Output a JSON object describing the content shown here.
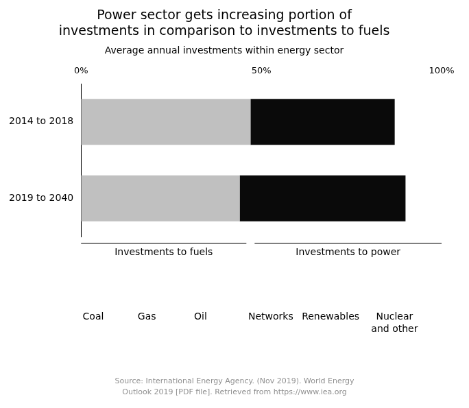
{
  "chart_data": {
    "type": "bar",
    "orientation": "horizontal",
    "stacked": true,
    "title": [
      "Power sector gets increasing portion of",
      "investments in comparison to investments to fuels"
    ],
    "subtitle": "Average annual investments within energy sector",
    "categories": [
      "2014 to 2018",
      "2019 to 2040"
    ],
    "series": [
      {
        "name": "Investments to fuels",
        "color": "#c0c0c0",
        "values": [
          47,
          44
        ]
      },
      {
        "name": "Investments to power",
        "color": "#0a0a0a",
        "values": [
          40,
          46
        ]
      }
    ],
    "xlim": [
      0,
      100
    ],
    "xticks": [
      {
        "value": 0,
        "label": "0%"
      },
      {
        "value": 50,
        "label": "50%"
      },
      {
        "value": 100,
        "label": "100%"
      }
    ],
    "grid": false,
    "annotations": [
      "Coal",
      "Gas",
      "Oil",
      "Networks",
      "Renewables",
      "Nuclear\nand other",
      "Source: International Energy Agency. (Nov 2019). World Energy\nOutlook 2019 [PDF file]. Retrieved from https://www.iea.org"
    ]
  }
}
